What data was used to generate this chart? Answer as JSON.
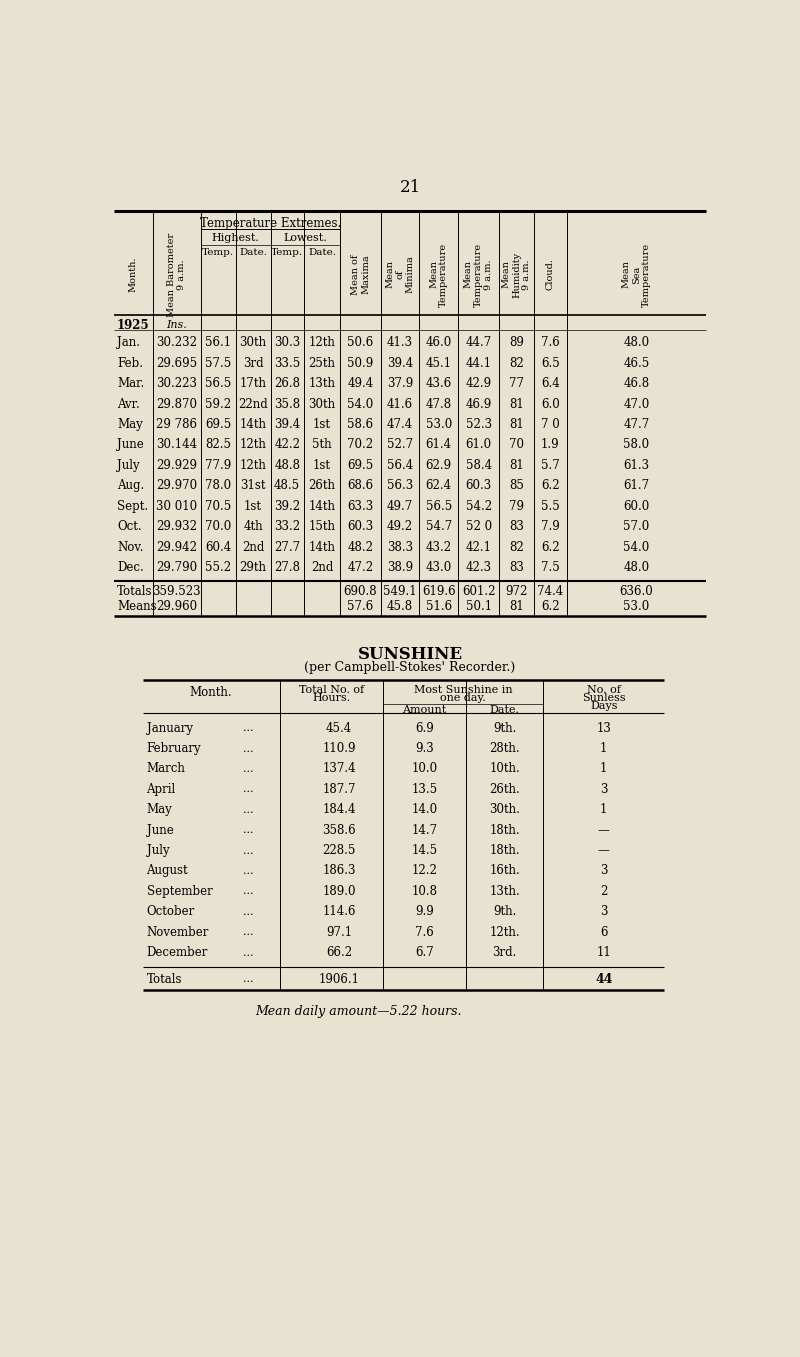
{
  "bg_color": "#e8e2d0",
  "page_number": "21",
  "table1": {
    "rows": [
      [
        "Jan.",
        "30.232",
        "56.1",
        "30th",
        "30.3",
        "12th",
        "50.6",
        "41.3",
        "46.0",
        "44.7",
        "89",
        "7.6",
        "48.0"
      ],
      [
        "Feb.",
        "29.695",
        "57.5",
        "3rd",
        "33.5",
        "25th",
        "50.9",
        "39.4",
        "45.1",
        "44.1",
        "82",
        "6.5",
        "46.5"
      ],
      [
        "Mar.",
        "30.223",
        "56.5",
        "17th",
        "26.8",
        "13th",
        "49.4",
        "37.9",
        "43.6",
        "42.9",
        "77",
        "6.4",
        "46.8"
      ],
      [
        "Avr.",
        "29.870",
        "59.2",
        "22nd",
        "35.8",
        "30th",
        "54.0",
        "41.6",
        "47.8",
        "46.9",
        "81",
        "6.0",
        "47.0"
      ],
      [
        "May",
        "29 786",
        "69.5",
        "14th",
        "39.4",
        "1st",
        "58.6",
        "47.4",
        "53.0",
        "52.3",
        "81",
        "7 0",
        "47.7"
      ],
      [
        "June",
        "30.144",
        "82.5",
        "12th",
        "42.2",
        "5th",
        "70.2",
        "52.7",
        "61.4",
        "61.0",
        "70",
        "1.9",
        "58.0"
      ],
      [
        "July",
        "29.929",
        "77.9",
        "12th",
        "48.8",
        "1st",
        "69.5",
        "56.4",
        "62.9",
        "58.4",
        "81",
        "5.7",
        "61.3"
      ],
      [
        "Aug.",
        "29.970",
        "78.0",
        "31st",
        "48.5",
        "26th",
        "68.6",
        "56.3",
        "62.4",
        "60.3",
        "85",
        "6.2",
        "61.7"
      ],
      [
        "Sept.",
        "30 010",
        "70.5",
        "1st",
        "39.2",
        "14th",
        "63.3",
        "49.7",
        "56.5",
        "54.2",
        "79",
        "5.5",
        "60.0"
      ],
      [
        "Oct.",
        "29.932",
        "70.0",
        "4th",
        "33.2",
        "15th",
        "60.3",
        "49.2",
        "54.7",
        "52 0",
        "83",
        "7.9",
        "57.0"
      ],
      [
        "Nov.",
        "29.942",
        "60.4",
        "2nd",
        "27.7",
        "14th",
        "48.2",
        "38.3",
        "43.2",
        "42.1",
        "82",
        "6.2",
        "54.0"
      ],
      [
        "Dec.",
        "29.790",
        "55.2",
        "29th",
        "27.8",
        "2nd",
        "47.2",
        "38.9",
        "43.0",
        "42.3",
        "83",
        "7.5",
        "48.0"
      ]
    ],
    "totals_row": [
      "Totals",
      "359.523",
      "",
      "",
      "",
      "",
      "690.8",
      "549.1",
      "619.6",
      "601.2",
      "972",
      "74.4",
      "636.0"
    ],
    "means_row": [
      "Means",
      "29.960",
      "",
      "",
      "",
      "",
      "57.6",
      "45.8",
      "51.6",
      "50.1",
      "81",
      "6.2",
      "53.0"
    ]
  },
  "table2": {
    "title": "SUNSHINE",
    "subtitle": "(per Campbell-Stokes' Recorder.)",
    "rows": [
      [
        "January",
        "45.4",
        "6.9",
        "9th.",
        "13"
      ],
      [
        "February",
        "110.9",
        "9.3",
        "28th.",
        "1"
      ],
      [
        "March",
        "137.4",
        "10.0",
        "10th.",
        "1"
      ],
      [
        "April",
        "187.7",
        "13.5",
        "26th.",
        "3"
      ],
      [
        "May",
        "184.4",
        "14.0",
        "30th.",
        "1"
      ],
      [
        "June",
        "358.6",
        "14.7",
        "18th.",
        "-"
      ],
      [
        "July",
        "228.5",
        "14.5",
        "18th.",
        "-"
      ],
      [
        "August",
        "186.3",
        "12.2",
        "16th.",
        "3"
      ],
      [
        "September",
        "189.0",
        "10.8",
        "13th.",
        "2"
      ],
      [
        "October",
        "114.6",
        "9.9",
        "9th.",
        "3"
      ],
      [
        "November",
        "97.1",
        "7.6",
        "12th.",
        "6"
      ],
      [
        "December",
        "66.2",
        "6.7",
        "3rd.",
        "11"
      ]
    ],
    "totals_row": [
      "Totals",
      "1906.1",
      "",
      "",
      "44"
    ],
    "footer": "Mean daily amount-5.22 hours."
  }
}
